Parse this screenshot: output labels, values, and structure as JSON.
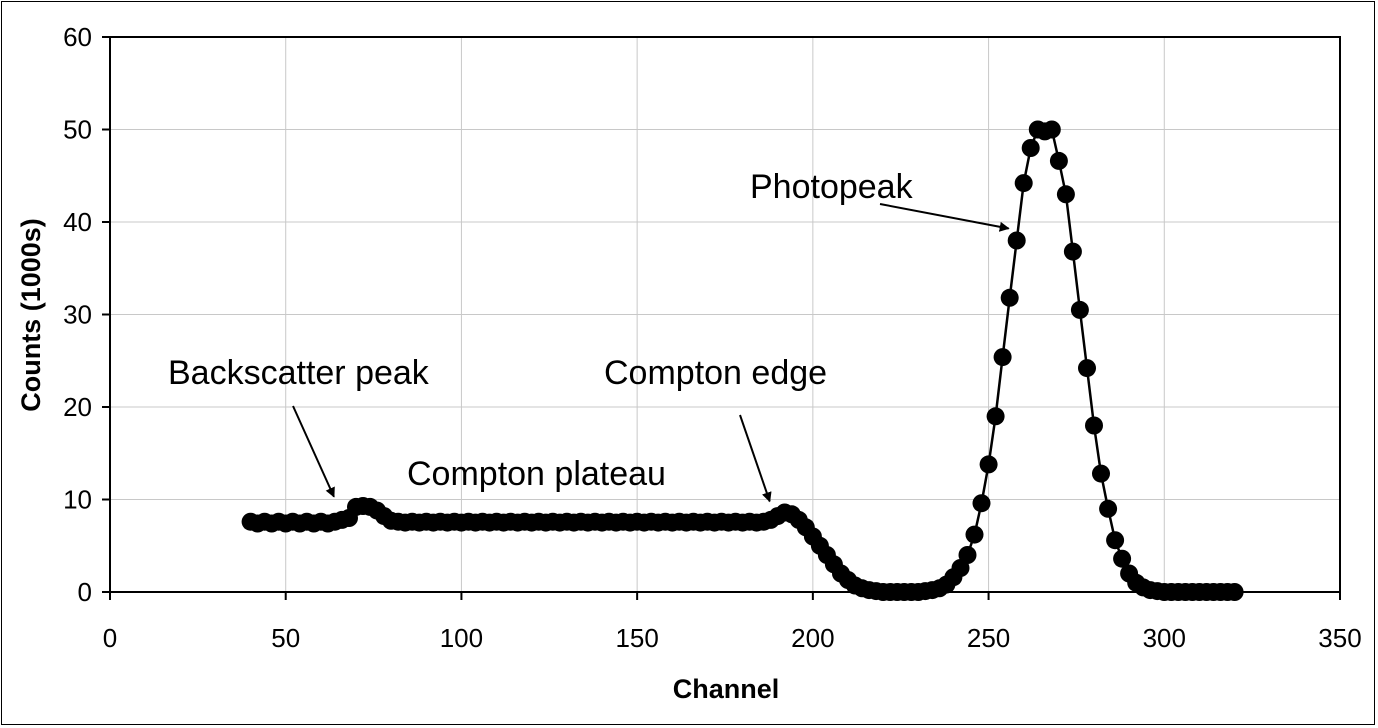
{
  "chart_data": {
    "type": "scatter",
    "title": "",
    "xlabel": "Channel",
    "ylabel": "Counts (1000s)",
    "xlim": [
      0,
      350
    ],
    "ylim": [
      0,
      60
    ],
    "xticks": [
      0,
      50,
      100,
      150,
      200,
      250,
      300,
      350
    ],
    "yticks": [
      0,
      10,
      20,
      30,
      40,
      50,
      60
    ],
    "grid": true,
    "legend": "none",
    "colors": {
      "marker": "#000000",
      "line": "#000000",
      "grid": "#c8c8c8"
    },
    "series": [
      {
        "x": [
          40,
          42,
          44,
          46,
          48,
          50,
          52,
          54,
          56,
          58,
          60,
          62,
          64,
          66,
          68,
          70,
          72,
          74,
          76,
          78,
          80,
          82,
          84,
          86,
          88,
          90,
          92,
          94,
          96,
          98,
          100,
          102,
          104,
          106,
          108,
          110,
          112,
          114,
          116,
          118,
          120,
          122,
          124,
          126,
          128,
          130,
          132,
          134,
          136,
          138,
          140,
          142,
          144,
          146,
          148,
          150,
          152,
          154,
          156,
          158,
          160,
          162,
          164,
          166,
          168,
          170,
          172,
          174,
          176,
          178,
          180,
          182,
          184,
          186,
          188,
          190,
          192,
          194,
          196,
          198,
          200,
          202,
          204,
          206,
          208,
          210,
          212,
          214,
          216,
          218,
          220,
          222,
          224,
          226,
          228,
          230,
          232,
          234,
          236,
          238,
          240,
          242,
          244,
          246,
          248,
          250,
          252,
          254,
          256,
          258,
          260,
          262,
          264,
          266,
          268,
          270,
          272,
          274,
          276,
          278,
          280,
          282,
          284,
          286,
          288,
          290,
          292,
          294,
          296,
          298,
          300,
          302,
          304,
          306,
          308,
          310,
          312,
          314,
          316,
          318,
          320
        ],
        "y": [
          7.6,
          7.4,
          7.6,
          7.4,
          7.6,
          7.4,
          7.6,
          7.4,
          7.6,
          7.4,
          7.6,
          7.4,
          7.6,
          7.8,
          8.0,
          9.2,
          9.3,
          9.2,
          8.8,
          8.2,
          7.7,
          7.6,
          7.5,
          7.6,
          7.5,
          7.6,
          7.5,
          7.6,
          7.5,
          7.6,
          7.5,
          7.6,
          7.5,
          7.6,
          7.5,
          7.6,
          7.5,
          7.6,
          7.5,
          7.6,
          7.5,
          7.6,
          7.5,
          7.6,
          7.5,
          7.6,
          7.5,
          7.6,
          7.5,
          7.6,
          7.5,
          7.6,
          7.5,
          7.6,
          7.5,
          7.6,
          7.5,
          7.6,
          7.5,
          7.6,
          7.5,
          7.6,
          7.5,
          7.6,
          7.5,
          7.6,
          7.5,
          7.6,
          7.5,
          7.6,
          7.5,
          7.6,
          7.5,
          7.6,
          7.8,
          8.2,
          8.6,
          8.4,
          7.8,
          7.0,
          6.0,
          5.0,
          4.0,
          3.0,
          2.0,
          1.3,
          0.7,
          0.4,
          0.2,
          0.1,
          0.0,
          0.0,
          0.0,
          0.0,
          0.0,
          0.0,
          0.1,
          0.2,
          0.4,
          0.8,
          1.6,
          2.6,
          4.0,
          6.2,
          9.6,
          13.8,
          19.0,
          25.4,
          31.8,
          38.0,
          44.2,
          48.0,
          50.0,
          49.8,
          50.0,
          46.6,
          43.0,
          36.8,
          30.5,
          24.2,
          18.0,
          12.8,
          9.0,
          5.6,
          3.6,
          2.0,
          1.0,
          0.5,
          0.2,
          0.1,
          0.0,
          0.0,
          0.0,
          0.0,
          0.0,
          0.0,
          0.0,
          0.0,
          0.0,
          0.0,
          0.0
        ]
      }
    ],
    "annotations": [
      {
        "text": "Photopeak",
        "target": [
          258,
          38
        ]
      },
      {
        "text": "Backscatter peak",
        "target": [
          66,
          9
        ]
      },
      {
        "text": "Compton plateau"
      },
      {
        "text": "Compton edge",
        "target": [
          190,
          8.5
        ]
      }
    ]
  }
}
